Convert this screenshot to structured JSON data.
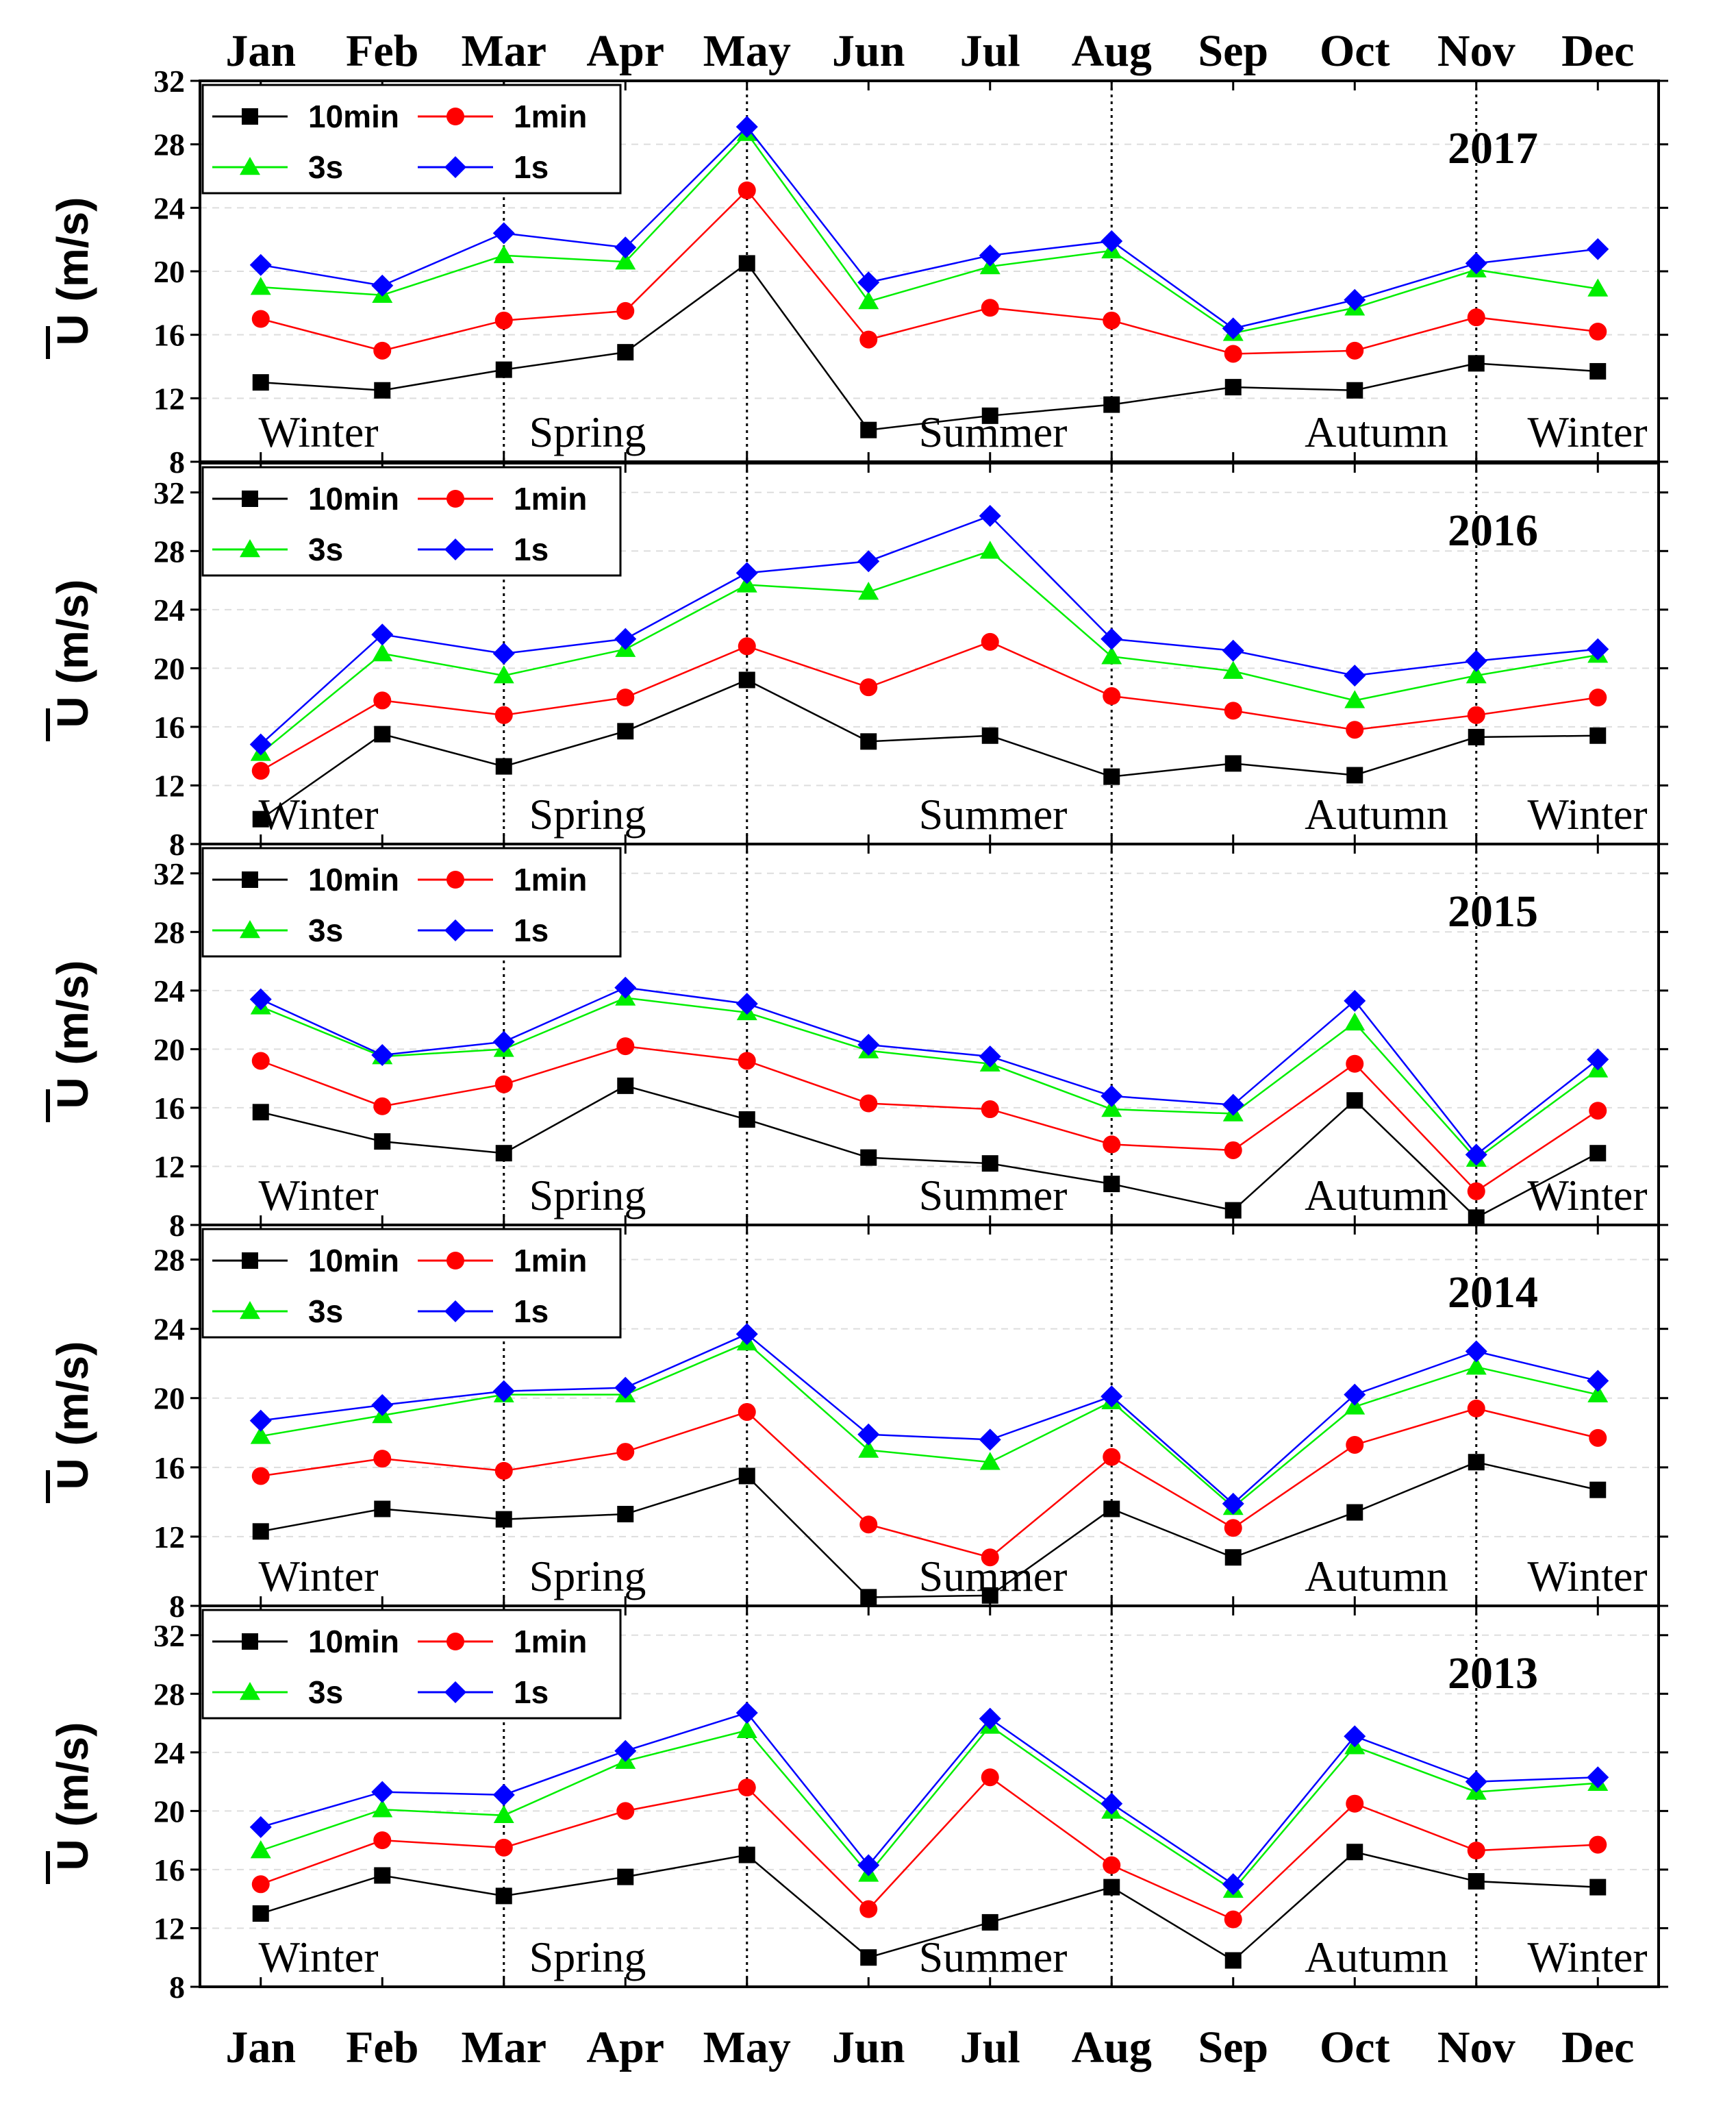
{
  "chart_data": {
    "type": "line",
    "months": [
      "Jan",
      "Feb",
      "Mar",
      "Apr",
      "May",
      "Jun",
      "Jul",
      "Aug",
      "Sep",
      "Oct",
      "Nov",
      "Dec"
    ],
    "ylabel": "U (m/s)",
    "series_style": [
      {
        "name": "10min",
        "color": "#000000",
        "marker": "square"
      },
      {
        "name": "1min",
        "color": "#ff0000",
        "marker": "circle"
      },
      {
        "name": "3s",
        "color": "#00ee00",
        "marker": "triangle"
      },
      {
        "name": "1s",
        "color": "#0000ff",
        "marker": "diamond"
      }
    ],
    "panels": [
      {
        "year": "2017",
        "ylim": [
          8,
          32
        ],
        "yticks": [
          "8",
          "12",
          "16",
          "20",
          "24",
          "28",
          "32"
        ],
        "dividers": [
          2.5,
          4.5,
          7.5,
          10.5
        ],
        "seasons": [
          "Winter",
          "Spring",
          "Summer",
          "Autumn",
          "Winter"
        ],
        "series": [
          {
            "name": "10min",
            "values": [
              13.0,
              12.5,
              13.8,
              14.9,
              20.5,
              10.0,
              10.9,
              11.6,
              12.7,
              12.5,
              14.2,
              13.7
            ]
          },
          {
            "name": "1min",
            "values": [
              17.0,
              15.0,
              16.9,
              17.5,
              25.1,
              15.7,
              17.7,
              16.9,
              14.8,
              15.0,
              17.1,
              16.2
            ]
          },
          {
            "name": "3s",
            "values": [
              19.0,
              18.5,
              21.0,
              20.6,
              28.7,
              18.1,
              20.3,
              21.3,
              16.1,
              17.7,
              20.1,
              18.9
            ]
          },
          {
            "name": "1s",
            "values": [
              20.4,
              19.1,
              22.4,
              21.5,
              29.1,
              19.3,
              21.0,
              21.9,
              16.4,
              18.2,
              20.5,
              21.4
            ]
          }
        ]
      },
      {
        "year": "2016",
        "ylim": [
          8,
          34
        ],
        "yticks": [
          "8",
          "12",
          "16",
          "20",
          "24",
          "28",
          "32"
        ],
        "dividers": [
          2.5,
          4.5,
          7.5,
          10.5
        ],
        "seasons": [
          "Winter",
          "Spring",
          "Summer",
          "Autumn",
          "Winter"
        ],
        "series": [
          {
            "name": "10min",
            "values": [
              9.7,
              15.5,
              13.3,
              15.7,
              19.2,
              15.0,
              15.4,
              12.6,
              13.5,
              12.7,
              15.3,
              15.4
            ]
          },
          {
            "name": "1min",
            "values": [
              13.0,
              17.8,
              16.8,
              18.0,
              21.5,
              18.7,
              21.8,
              18.1,
              17.1,
              15.8,
              16.8,
              18.0
            ]
          },
          {
            "name": "3s",
            "values": [
              14.2,
              21.0,
              19.5,
              21.3,
              25.7,
              25.2,
              28.0,
              20.8,
              19.8,
              17.8,
              19.5,
              20.9
            ]
          },
          {
            "name": "1s",
            "values": [
              14.8,
              22.3,
              21.0,
              22.0,
              26.5,
              27.3,
              30.4,
              22.0,
              21.2,
              19.5,
              20.5,
              21.3
            ]
          }
        ]
      },
      {
        "year": "2015",
        "ylim": [
          8,
          34
        ],
        "yticks": [
          "8",
          "12",
          "16",
          "20",
          "24",
          "28",
          "32"
        ],
        "dividers": [
          2.5,
          4.5,
          7.5,
          10.5
        ],
        "seasons": [
          "Winter",
          "Spring",
          "Summer",
          "Autumn",
          "Winter"
        ],
        "series": [
          {
            "name": "10min",
            "values": [
              15.7,
              13.7,
              12.9,
              17.5,
              15.2,
              12.6,
              12.2,
              10.8,
              9.0,
              16.5,
              8.5,
              12.9
            ]
          },
          {
            "name": "1min",
            "values": [
              19.2,
              16.1,
              17.6,
              20.2,
              19.2,
              16.3,
              15.9,
              13.5,
              13.1,
              19.0,
              10.3,
              15.8
            ]
          },
          {
            "name": "3s",
            "values": [
              22.9,
              19.5,
              20.0,
              23.5,
              22.5,
              19.9,
              19.0,
              15.9,
              15.6,
              21.8,
              12.5,
              18.6
            ]
          },
          {
            "name": "1s",
            "values": [
              23.4,
              19.6,
              20.5,
              24.2,
              23.1,
              20.3,
              19.5,
              16.8,
              16.2,
              23.3,
              12.8,
              19.3
            ]
          }
        ]
      },
      {
        "year": "2014",
        "ylim": [
          8,
          30
        ],
        "yticks": [
          "8",
          "12",
          "16",
          "20",
          "24",
          "28"
        ],
        "dividers": [
          2.5,
          4.5,
          7.5,
          10.5
        ],
        "seasons": [
          "Winter",
          "Spring",
          "Summer",
          "Autumn",
          "Winter"
        ],
        "series": [
          {
            "name": "10min",
            "values": [
              12.3,
              13.6,
              13.0,
              13.3,
              15.5,
              8.5,
              8.6,
              13.6,
              10.8,
              13.4,
              16.3,
              14.7
            ]
          },
          {
            "name": "1min",
            "values": [
              15.5,
              16.5,
              15.8,
              16.9,
              19.2,
              12.7,
              10.8,
              16.6,
              12.5,
              17.3,
              19.4,
              17.7
            ]
          },
          {
            "name": "3s",
            "values": [
              17.8,
              19.0,
              20.2,
              20.2,
              23.2,
              17.0,
              16.3,
              19.8,
              13.7,
              19.5,
              21.8,
              20.2
            ]
          },
          {
            "name": "1s",
            "values": [
              18.7,
              19.6,
              20.4,
              20.6,
              23.7,
              17.9,
              17.6,
              20.1,
              13.9,
              20.2,
              22.7,
              21.0
            ]
          }
        ]
      },
      {
        "year": "2013",
        "ylim": [
          8,
          34
        ],
        "yticks": [
          "8",
          "12",
          "16",
          "20",
          "24",
          "28",
          "32"
        ],
        "dividers": [
          2.5,
          4.5,
          7.5,
          10.5
        ],
        "seasons": [
          "Winter",
          "Spring",
          "Summer",
          "Autumn",
          "Winter"
        ],
        "series": [
          {
            "name": "10min",
            "values": [
              13.0,
              15.6,
              14.2,
              15.5,
              17.0,
              10.0,
              12.4,
              14.8,
              9.8,
              17.2,
              15.2,
              14.8
            ]
          },
          {
            "name": "1min",
            "values": [
              15.0,
              18.0,
              17.5,
              20.0,
              21.6,
              13.3,
              22.3,
              16.3,
              12.6,
              20.5,
              17.3,
              17.7
            ]
          },
          {
            "name": "3s",
            "values": [
              17.3,
              20.1,
              19.7,
              23.4,
              25.5,
              15.7,
              25.8,
              20.0,
              14.6,
              24.4,
              21.3,
              21.9
            ]
          },
          {
            "name": "1s",
            "values": [
              18.9,
              21.3,
              21.1,
              24.1,
              26.7,
              16.3,
              26.3,
              20.5,
              15.0,
              25.1,
              22.0,
              22.3
            ]
          }
        ]
      }
    ]
  }
}
